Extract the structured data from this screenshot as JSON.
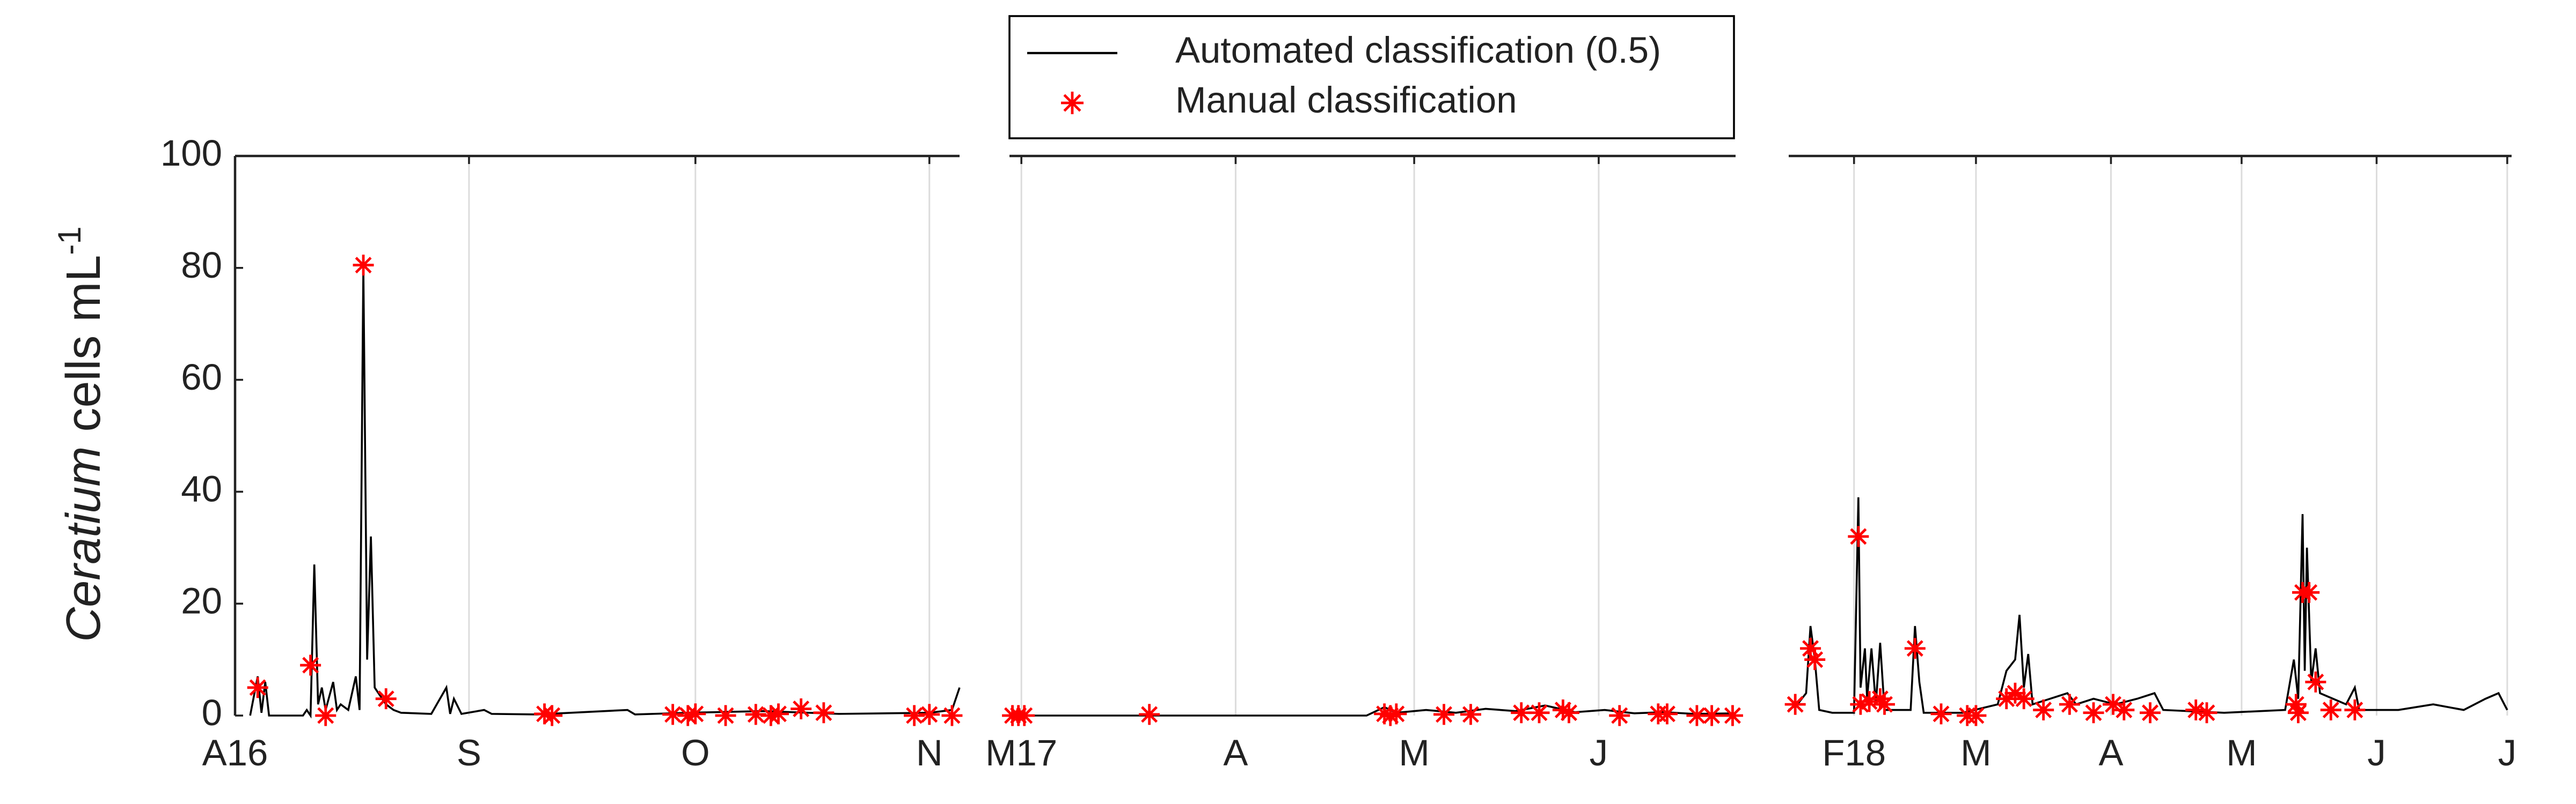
{
  "chart_data": [
    {
      "type": "line",
      "grid": true,
      "y_label": {
        "italic": "Ceratium",
        "text": "cells mL",
        "superscript": "-1"
      },
      "xlim": [
        0,
        96
      ],
      "ylim": [
        0,
        100
      ],
      "yticks": [
        0,
        20,
        40,
        60,
        80,
        100
      ],
      "xticks": [
        {
          "value": 0,
          "label": "A16"
        },
        {
          "value": 31,
          "label": "S"
        },
        {
          "value": 61,
          "label": "O"
        },
        {
          "value": 92,
          "label": "N"
        }
      ],
      "series": [
        {
          "name": "Automated classification (0.5)",
          "type": "line",
          "color": "#000000",
          "x": [
            2,
            3,
            3.5,
            4,
            4.5,
            9,
            9.5,
            10,
            10.5,
            11,
            11.5,
            12,
            13,
            13.5,
            14,
            15,
            16,
            16.5,
            17,
            17.5,
            18,
            18.5,
            19,
            20,
            21,
            22,
            26,
            28,
            28.5,
            29,
            30,
            33,
            34,
            40,
            52,
            53,
            60,
            70,
            80,
            92,
            95,
            96
          ],
          "values": [
            0,
            7,
            0.5,
            6,
            0,
            0,
            1,
            0,
            27,
            2,
            5,
            1,
            6,
            1,
            2,
            1,
            7,
            1,
            80,
            10,
            32,
            5,
            4,
            2,
            1,
            0.5,
            0.3,
            5,
            0.3,
            3,
            0.3,
            1,
            0.3,
            0.2,
            1,
            0.2,
            0.5,
            0.8,
            0.3,
            0.5,
            1,
            5
          ]
        },
        {
          "name": "Manual classification",
          "type": "scatter",
          "color": "#ff0000",
          "x": [
            3,
            10,
            12,
            17,
            20,
            41,
            42,
            58,
            60,
            61,
            65,
            69,
            71,
            72,
            75,
            78,
            90,
            92,
            95
          ],
          "values": [
            5,
            9,
            0,
            80.5,
            3,
            0.3,
            0,
            0.2,
            0,
            0.3,
            0,
            0.2,
            0,
            0.3,
            1.2,
            0.5,
            0,
            0.2,
            0
          ]
        }
      ]
    },
    {
      "type": "line",
      "grid": true,
      "xlim": [
        0,
        122
      ],
      "ylim": [
        0,
        100
      ],
      "xticks": [
        {
          "value": 2,
          "label": "M17"
        },
        {
          "value": 38,
          "label": "A"
        },
        {
          "value": 68,
          "label": "M"
        },
        {
          "value": 99,
          "label": "J"
        }
      ],
      "series": [
        {
          "type": "line",
          "color": "#000000",
          "x": [
            2,
            60,
            63,
            65,
            70,
            75,
            80,
            85,
            90,
            95,
            100,
            105,
            110,
            115,
            122
          ],
          "values": [
            0,
            0,
            1.5,
            0.5,
            1,
            0.5,
            1.2,
            0.8,
            1.8,
            0.6,
            1,
            0.4,
            0.6,
            0.3,
            0.4
          ]
        },
        {
          "type": "scatter",
          "color": "#ff0000",
          "x": [
            0.5,
            1.5,
            2.5,
            23.5,
            63,
            64,
            65,
            73,
            77.5,
            86,
            89,
            93,
            94,
            102.5,
            109,
            110.5,
            115.5,
            118,
            121.5
          ],
          "values": [
            0,
            0,
            0,
            0.2,
            0.3,
            0,
            0.3,
            0.2,
            0.2,
            0.5,
            0.5,
            1,
            0.5,
            0,
            0.3,
            0.3,
            0,
            0,
            0
          ]
        }
      ]
    },
    {
      "type": "line",
      "grid": true,
      "xlim": [
        0,
        166
      ],
      "ylim": [
        0,
        100
      ],
      "xticks": [
        {
          "value": 15,
          "label": "F18"
        },
        {
          "value": 43,
          "label": "M"
        },
        {
          "value": 74,
          "label": "A"
        },
        {
          "value": 104,
          "label": "M"
        },
        {
          "value": 135,
          "label": "J"
        },
        {
          "value": 165,
          "label": "J"
        }
      ],
      "series": [
        {
          "type": "line",
          "color": "#000000",
          "x": [
            0,
            2,
            4,
            5,
            6,
            7,
            10,
            15,
            16,
            16.5,
            17.5,
            18,
            19,
            20,
            21,
            22,
            28,
            29,
            30,
            31,
            40,
            48,
            50,
            52,
            53,
            54,
            55,
            56,
            60,
            64,
            66,
            70,
            75,
            80,
            84,
            86,
            100,
            114,
            116,
            117,
            118,
            118.5,
            119,
            120,
            121,
            122,
            125,
            128,
            130,
            131,
            140,
            148,
            155,
            160,
            163,
            165
          ],
          "values": [
            1,
            2,
            4,
            16,
            10,
            1,
            0.5,
            0.5,
            39,
            5,
            12,
            3,
            12,
            2,
            13,
            1,
            1,
            16,
            6,
            0.5,
            0.5,
            2,
            8,
            10,
            18,
            5,
            11,
            2,
            3,
            4,
            2,
            3,
            2,
            3,
            4,
            1,
            0.5,
            1,
            10,
            3,
            36,
            8,
            30,
            6,
            12,
            4,
            3,
            2,
            5,
            1,
            1,
            2,
            1,
            3,
            4,
            1
          ]
        },
        {
          "type": "scatter",
          "color": "#ff0000",
          "x": [
            1.5,
            5,
            6,
            16,
            16.5,
            18.5,
            21,
            22,
            29,
            35,
            41,
            43,
            50,
            52,
            54,
            58.5,
            64.5,
            70,
            74.5,
            77,
            83,
            93.5,
            96,
            116.5,
            117,
            118,
            119.5,
            121,
            124.5,
            130
          ],
          "values": [
            2,
            12,
            10,
            32,
            2,
            2.5,
            3,
            2,
            12,
            0.3,
            0,
            0,
            3,
            4,
            3,
            1,
            2,
            0.5,
            2,
            1,
            0.5,
            1,
            0.5,
            2,
            0.5,
            22,
            22,
            6,
            1,
            1
          ]
        }
      ]
    }
  ]
}
